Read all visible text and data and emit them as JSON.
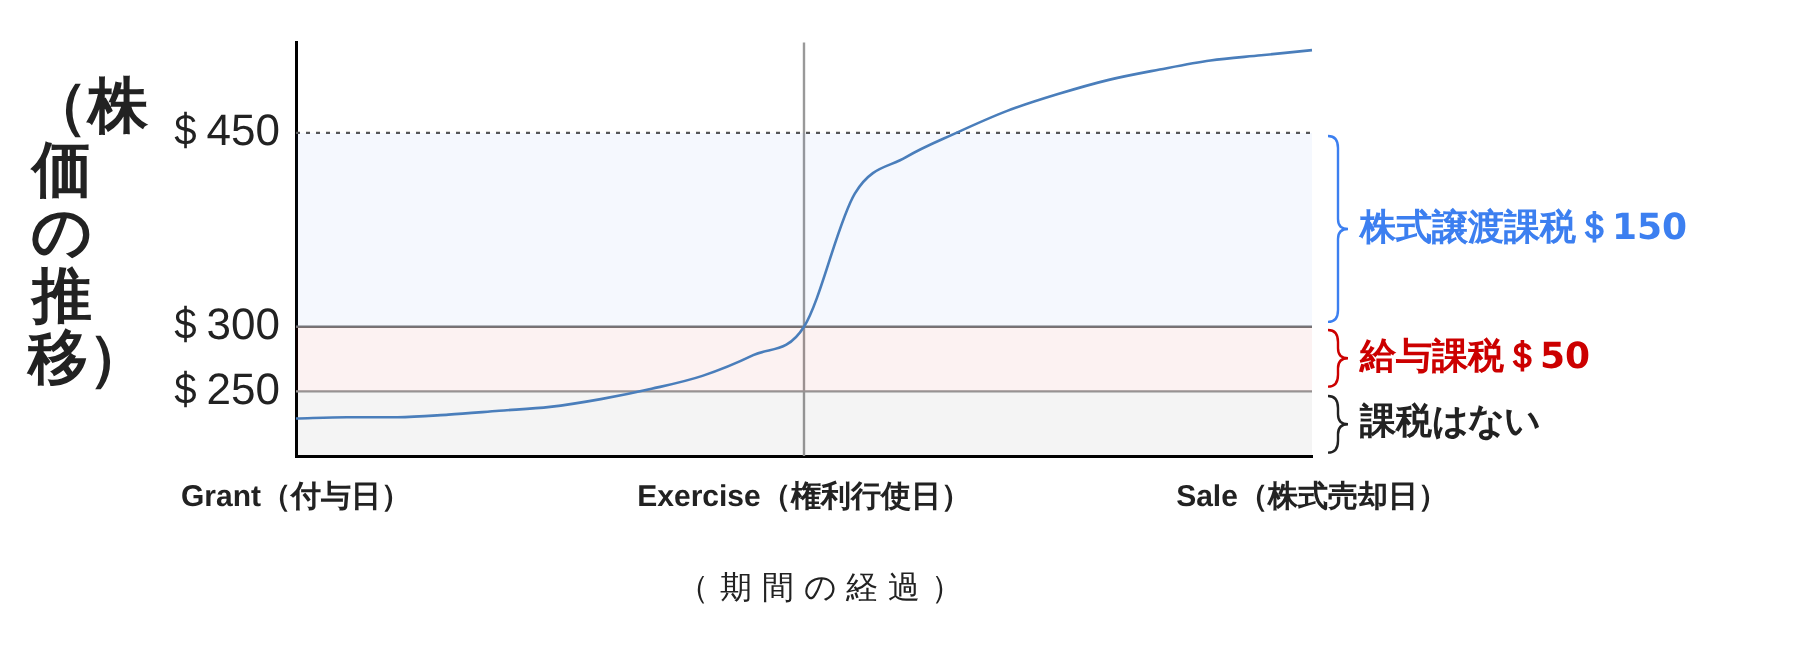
{
  "chart_data": {
    "type": "line",
    "ylabel": "（株価の推移）",
    "xlabel": "（ 期 間 の 経 過 ）",
    "categories": [
      "Grant（付与日）",
      null,
      null,
      null,
      null,
      null,
      null,
      null,
      null,
      null,
      "Exercise（権利行使日）",
      null,
      null,
      null,
      null,
      null,
      null,
      null,
      null,
      null,
      "Sale（株式売却日）"
    ],
    "series": [
      {
        "color": "#4a7ebb",
        "values": [
          229,
          230,
          230,
          232,
          235,
          238,
          244,
          252,
          262,
          278,
          300,
          403,
          431,
          450,
          467,
          480,
          491,
          499,
          506,
          510,
          514
        ]
      }
    ],
    "ylim": [
      200,
      520
    ],
    "yticks": [
      {
        "value": 250,
        "label": "＄250"
      },
      {
        "value": 300,
        "label": "＄300"
      },
      {
        "value": 450,
        "label": "＄450"
      }
    ],
    "marker": "none",
    "line_style": "solid",
    "legend": false,
    "grid": false,
    "ref_lines": [
      {
        "axis": "y",
        "value": 450,
        "line_style": "dotted",
        "color": "#555555"
      },
      {
        "axis": "y",
        "value": 300,
        "line_style": "solid",
        "color": "#777777"
      },
      {
        "axis": "y",
        "value": 250,
        "line_style": "solid",
        "color": "#999999"
      },
      {
        "axis": "x",
        "value": "Exercise（権利行使日）",
        "line_style": "solid",
        "color": "#999999"
      }
    ],
    "bands": [
      {
        "axis": "y",
        "from": 300,
        "to": 450,
        "label": "株式譲渡課税＄150",
        "color": "#3c7ff0"
      },
      {
        "axis": "y",
        "from": 250,
        "to": 300,
        "label": "給与課税＄50",
        "color": "#cc0000"
      },
      {
        "axis": "y",
        "from": 200,
        "to": 250,
        "label": "課税はない",
        "color": "#222222"
      }
    ]
  }
}
